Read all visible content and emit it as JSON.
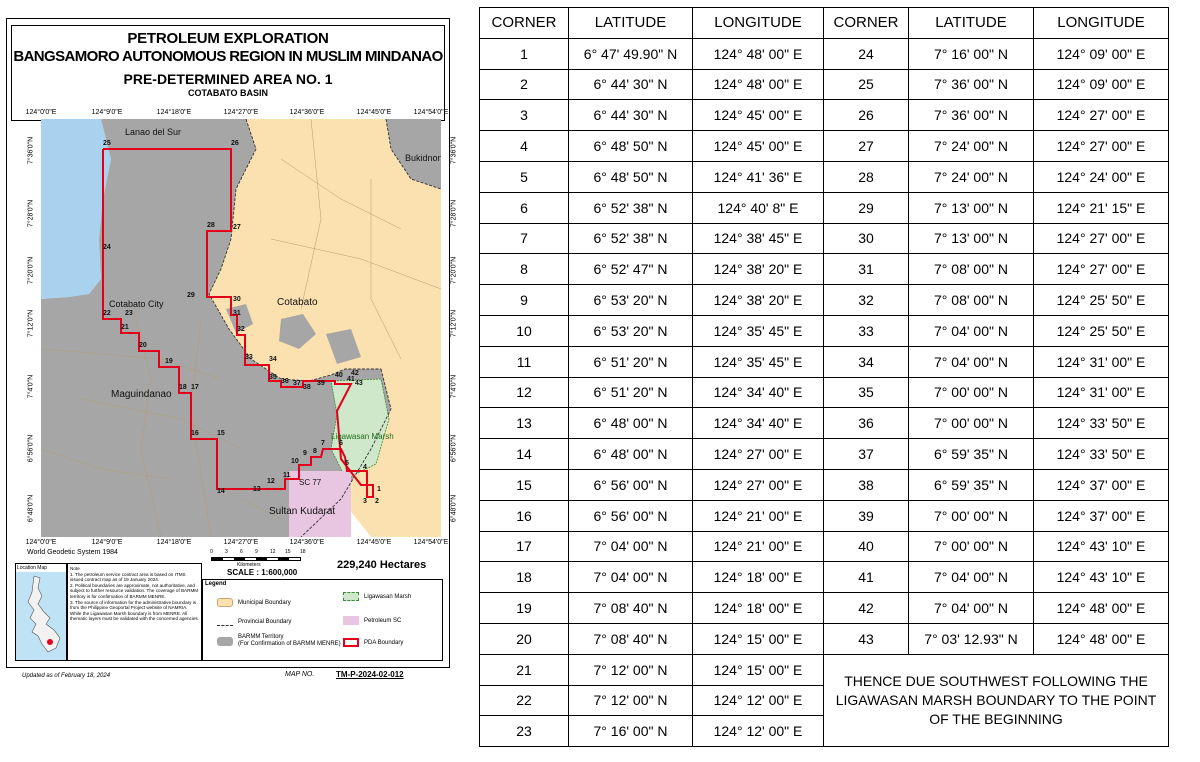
{
  "map": {
    "title_line1": "PETROLEUM EXPLORATION",
    "title_line2": "BANGSAMORO AUTONOMOUS REGION IN MUSLIM MINDANAO",
    "title_line3": "PRE-DETERMINED AREA NO.  1",
    "title_line4": "COTABATO BASIN",
    "lon_labels": [
      "124°0'0\"E",
      "124°9'0\"E",
      "124°18'0\"E",
      "124°27'0\"E",
      "124°36'0\"E",
      "124°45'0\"E",
      "124°54'0\"E"
    ],
    "lat_labels": [
      "7°36'0\"N",
      "7°28'0\"N",
      "7°20'0\"N",
      "7°12'0\"N",
      "7°4'0\"N",
      "6°56'0\"N",
      "6°48'0\"N"
    ],
    "place_labels": {
      "lanao_del_sur": "Lanao del Sur",
      "bukidnon": "Bukidnon",
      "cotabato_city": "Cotabato City",
      "cotabato": "Cotabato",
      "maguindanao": "Maguindanao",
      "ligawasan_marsh": "Ligawasan Marsh",
      "sultan_kudarat": "Sultan Kudarat",
      "sc77": "SC 77"
    },
    "corner_numbers": [
      "1",
      "2",
      "3",
      "4",
      "5",
      "6",
      "7",
      "8",
      "9",
      "10",
      "11",
      "12",
      "13",
      "14",
      "15",
      "16",
      "17",
      "18",
      "19",
      "20",
      "21",
      "22",
      "23",
      "24",
      "25",
      "26",
      "27",
      "28",
      "29",
      "30",
      "31",
      "32",
      "33",
      "34",
      "35",
      "36",
      "37",
      "38",
      "39",
      "40",
      "41",
      "42",
      "43"
    ],
    "datum": "World Geodetic System  1984",
    "scale_ticks": [
      "0",
      "3",
      "6",
      "9",
      "12",
      "15",
      "18"
    ],
    "scale_unit": "Kilometers",
    "scale_text": "SCALE : 1:600,000",
    "hectares": "229,240  Hectares",
    "location_map_title": "Location Map",
    "note_title": "Note",
    "notes": [
      "1. The petroleum service contract  area is based on ITMS issued contract map as of  19 January 2024.",
      "2. Political boundaries are approximate, not authoritative, and subject to further resource validation. The coverage  of BARMM territory is for confirmation of BARMM MENRE.",
      "3. The source of information for the administrative boundary is from the Philippine Geoportal Project website of NAMRIA. While the Ligawasan Marsh boundary is from MENRE. All thematic layers must be validated with the concerned agencies."
    ],
    "legend_title": "Legend",
    "legend": {
      "municipal": "Municipal Boundary",
      "provincial": "Provincial Boundary",
      "barmm_line1": "BARMM Territory",
      "barmm_line2": "(For Confirmation of BARMM MENRE)",
      "ligawasan": "Ligawasan Marsh",
      "petroleum_sc": "Petroleum SC",
      "pda": "PDA Boundary"
    },
    "updated": "Updated as of February 18, 2024",
    "map_no_label": "MAP NO.",
    "map_no": "TM-P-2024-02-012",
    "colors": {
      "water": "#a9d2ee",
      "barmm": "#a6a6a6",
      "cotabato_land": "#fbe1b0",
      "pda": "#e2001a",
      "marsh": "#cfe8c9",
      "sc": "#e8c5e0"
    }
  },
  "table": {
    "headers": [
      "CORNER",
      "LATITUDE",
      "LONGITUDE",
      "CORNER",
      "LATITUDE",
      "LONGITUDE"
    ],
    "left": [
      [
        "1",
        "6° 47' 49.90\" N",
        "124° 48' 00\" E"
      ],
      [
        "2",
        "6° 44' 30\" N",
        "124° 48' 00\" E"
      ],
      [
        "3",
        "6° 44' 30\" N",
        "124° 45' 00\" E"
      ],
      [
        "4",
        "6° 48' 50\" N",
        "124° 45' 00\" E"
      ],
      [
        "5",
        "6° 48' 50\" N",
        "124° 41' 36\" E"
      ],
      [
        "6",
        "6° 52' 38\" N",
        "124° 40' 8\" E"
      ],
      [
        "7",
        "6° 52' 38\" N",
        "124° 38' 45\" E"
      ],
      [
        "8",
        "6° 52' 47\" N",
        "124° 38' 20\" E"
      ],
      [
        "9",
        "6° 53' 20\" N",
        "124° 38' 20\" E"
      ],
      [
        "10",
        "6° 53' 20\" N",
        "124° 35' 45\" E"
      ],
      [
        "11",
        "6° 51' 20\" N",
        "124° 35' 45\" E"
      ],
      [
        "12",
        "6° 51' 20\" N",
        "124° 34' 40\" E"
      ],
      [
        "13",
        "6° 48' 00\" N",
        "124° 34' 40\" E"
      ],
      [
        "14",
        "6° 48' 00\" N",
        "124° 27' 00\" E"
      ],
      [
        "15",
        "6° 56' 00\" N",
        "124° 27' 00\" E"
      ],
      [
        "16",
        "6° 56' 00\" N",
        "124° 21' 00\" E"
      ],
      [
        "17",
        "7° 04' 00\" N",
        "124° 21' 00\" E"
      ],
      [
        "18",
        "7° 04' 00\" N",
        "124° 18' 00\" E"
      ],
      [
        "19",
        "7° 08' 40\" N",
        "124° 18' 00\" E"
      ],
      [
        "20",
        "7° 08' 40\" N",
        "124° 15' 00\" E"
      ],
      [
        "21",
        "7° 12' 00\" N",
        "124° 15' 00\" E"
      ],
      [
        "22",
        "7° 12' 00\" N",
        "124° 12' 00\" E"
      ],
      [
        "23",
        "7° 16' 00\" N",
        "124° 12' 00\" E"
      ]
    ],
    "right": [
      [
        "24",
        "7° 16' 00\" N",
        "124° 09' 00\" E"
      ],
      [
        "25",
        "7° 36' 00\" N",
        "124° 09' 00\" E"
      ],
      [
        "26",
        "7° 36' 00\" N",
        "124° 27' 00\" E"
      ],
      [
        "27",
        "7° 24' 00\" N",
        "124° 27' 00\" E"
      ],
      [
        "28",
        "7° 24' 00\" N",
        "124° 24' 00\" E"
      ],
      [
        "29",
        "7° 13' 00\" N",
        "124° 21' 15\" E"
      ],
      [
        "30",
        "7° 13' 00\" N",
        "124° 27' 00\" E"
      ],
      [
        "31",
        "7° 08' 00\" N",
        "124° 27' 00\" E"
      ],
      [
        "32",
        "7° 08' 00\" N",
        "124° 25' 50\" E"
      ],
      [
        "33",
        "7° 04' 00\" N",
        "124° 25' 50\" E"
      ],
      [
        "34",
        "7° 04' 00\" N",
        "124° 31' 00\" E"
      ],
      [
        "35",
        "7° 00' 00\" N",
        "124° 31' 00\" E"
      ],
      [
        "36",
        "7° 00' 00\" N",
        "124° 33' 50\" E"
      ],
      [
        "37",
        "6° 59' 35\" N",
        "124° 33' 50\" E"
      ],
      [
        "38",
        "6° 59' 35\" N",
        "124° 37' 00\" E"
      ],
      [
        "39",
        "7° 00' 00\" N",
        "124° 37' 00\" E"
      ],
      [
        "40",
        "7° 00' 00\" N",
        "124° 43' 10\" E"
      ],
      [
        "41",
        "7° 04' 00\" N",
        "124° 43' 10\" E"
      ],
      [
        "42",
        "7° 04' 00\" N",
        "124° 48' 00\" E"
      ],
      [
        "43",
        "7° 03' 12.93\" N",
        "124° 48' 00\" E"
      ]
    ],
    "closing_note": "THENCE DUE SOUTHWEST FOLLOWING THE LIGAWASAN MARSH BOUNDARY TO THE POINT OF THE BEGINNING"
  }
}
